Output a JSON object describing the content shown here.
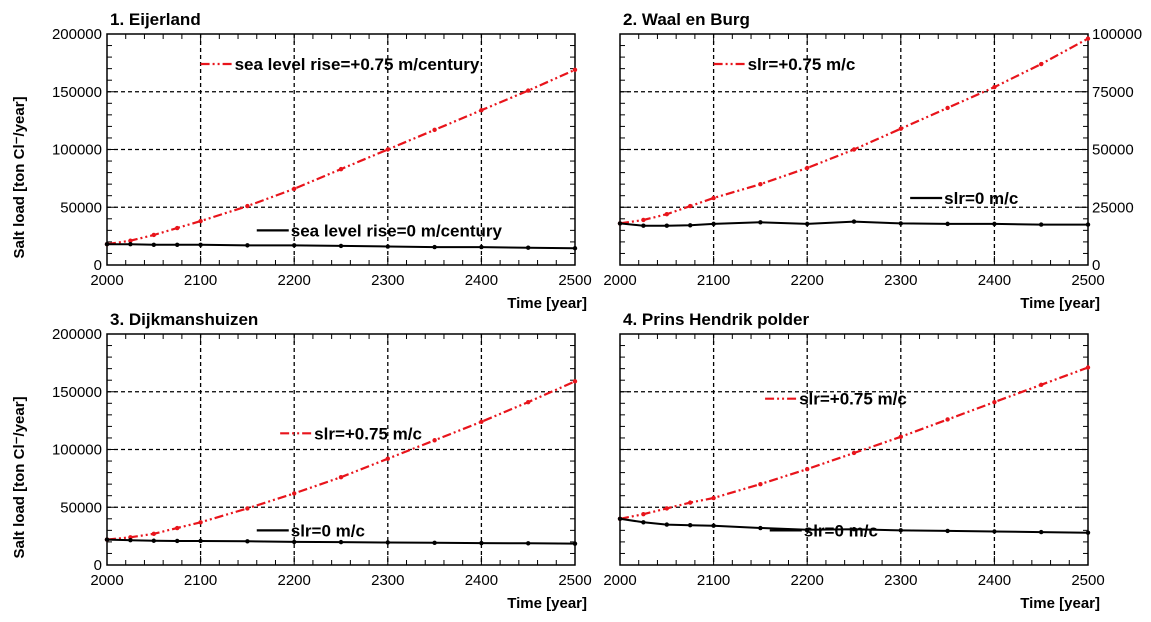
{
  "chart_data": [
    {
      "type": "line",
      "title": "1. Eijerland",
      "xlabel": "Time [year]",
      "ylabel": "Salt load [ton Cl⁻/year]",
      "xlim": [
        2000,
        2500
      ],
      "ylim": [
        0,
        200000
      ],
      "x_ticks": [
        "2000",
        "2100",
        "2200",
        "2300",
        "2400",
        "2500"
      ],
      "y_ticks": [
        "0",
        "50000",
        "100000",
        "150000",
        "200000"
      ],
      "y_axis_side": "left",
      "grid": true,
      "series": [
        {
          "name": "sea level rise=+0.75 m/century",
          "color": "#e8141b",
          "style": "dash-dot-dot",
          "x": [
            2000,
            2025,
            2050,
            2075,
            2100,
            2150,
            2200,
            2250,
            2300,
            2350,
            2400,
            2450,
            2500
          ],
          "y": [
            18000,
            21000,
            26000,
            32000,
            38000,
            51000,
            66000,
            83000,
            100000,
            117000,
            134000,
            151000,
            169000
          ]
        },
        {
          "name": "sea level rise=0 m/century",
          "color": "#000000",
          "style": "solid",
          "x": [
            2000,
            2025,
            2050,
            2075,
            2100,
            2150,
            2200,
            2250,
            2300,
            2350,
            2400,
            2450,
            2500
          ],
          "y": [
            18000,
            18000,
            17500,
            17500,
            17500,
            17000,
            17000,
            16500,
            16000,
            15500,
            15500,
            15000,
            14500
          ]
        }
      ],
      "legend": [
        {
          "label": "sea level rise=+0.75 m/century",
          "series": 0,
          "placement": "top-right"
        },
        {
          "label": "sea level rise=0 m/century",
          "series": 1,
          "placement": "bottom-right"
        }
      ]
    },
    {
      "type": "line",
      "title": "2. Waal en Burg",
      "xlabel": "Time [year]",
      "ylabel": "",
      "xlim": [
        2000,
        2500
      ],
      "ylim": [
        0,
        100000
      ],
      "x_ticks": [
        "2000",
        "2100",
        "2200",
        "2300",
        "2400",
        "2500"
      ],
      "y_ticks": [
        "0",
        "25000",
        "50000",
        "75000",
        "100000"
      ],
      "y_axis_side": "right",
      "grid": true,
      "series": [
        {
          "name": "slr=+0.75 m/c",
          "color": "#e8141b",
          "style": "dash-dot-dot",
          "x": [
            2000,
            2025,
            2050,
            2075,
            2100,
            2150,
            2200,
            2250,
            2300,
            2350,
            2400,
            2450,
            2500
          ],
          "y": [
            18000,
            19500,
            22000,
            25500,
            29000,
            35000,
            42000,
            50000,
            59000,
            68000,
            77000,
            87000,
            98000
          ]
        },
        {
          "name": "slr=0 m/c",
          "color": "#000000",
          "style": "solid",
          "x": [
            2000,
            2025,
            2050,
            2075,
            2100,
            2150,
            2200,
            2250,
            2300,
            2350,
            2400,
            2450,
            2500
          ],
          "y": [
            18000,
            17000,
            17000,
            17200,
            17800,
            18500,
            17800,
            18800,
            18000,
            17800,
            17800,
            17500,
            17500
          ]
        }
      ],
      "legend": [
        {
          "label": "slr=+0.75 m/c",
          "series": 0,
          "placement": "top-right"
        },
        {
          "label": "slr=0 m/c",
          "series": 1,
          "placement": "middle-right"
        }
      ]
    },
    {
      "type": "line",
      "title": "3. Dijkmanshuizen",
      "xlabel": "Time [year]",
      "ylabel": "Salt load [ton Cl⁻/year]",
      "xlim": [
        2000,
        2500
      ],
      "ylim": [
        0,
        200000
      ],
      "x_ticks": [
        "2000",
        "2100",
        "2200",
        "2300",
        "2400",
        "2500"
      ],
      "y_ticks": [
        "0",
        "50000",
        "100000",
        "150000",
        "200000"
      ],
      "y_axis_side": "left",
      "grid": true,
      "series": [
        {
          "name": "slr=+0.75 m/c",
          "color": "#e8141b",
          "style": "dash-dot-dot",
          "x": [
            2000,
            2025,
            2050,
            2075,
            2100,
            2150,
            2200,
            2250,
            2300,
            2350,
            2400,
            2450,
            2500
          ],
          "y": [
            22000,
            24000,
            27000,
            32000,
            37000,
            49000,
            62000,
            76000,
            92000,
            108000,
            124000,
            141000,
            159000
          ]
        },
        {
          "name": "slr=0 m/c",
          "color": "#000000",
          "style": "solid",
          "x": [
            2000,
            2025,
            2050,
            2075,
            2100,
            2150,
            2200,
            2250,
            2300,
            2350,
            2400,
            2450,
            2500
          ],
          "y": [
            22000,
            21500,
            21000,
            20800,
            20800,
            20500,
            20000,
            19800,
            19500,
            19200,
            19000,
            18800,
            18500
          ]
        }
      ],
      "legend": [
        {
          "label": "slr=+0.75 m/c",
          "series": 0,
          "placement": "middle-center"
        },
        {
          "label": "slr=0 m/c",
          "series": 1,
          "placement": "bottom-right"
        }
      ]
    },
    {
      "type": "line",
      "title": "4. Prins Hendrik polder",
      "xlabel": "Time [year]",
      "ylabel": "",
      "xlim": [
        2000,
        2500
      ],
      "ylim": [
        0,
        200000
      ],
      "x_ticks": [
        "2000",
        "2100",
        "2200",
        "2300",
        "2400",
        "2500"
      ],
      "y_ticks": [],
      "y_axis_side": "none",
      "grid": true,
      "series": [
        {
          "name": "slr=+0.75 m/c",
          "color": "#e8141b",
          "style": "dash-dot-dot",
          "x": [
            2000,
            2025,
            2050,
            2075,
            2100,
            2150,
            2200,
            2250,
            2300,
            2350,
            2400,
            2450,
            2500
          ],
          "y": [
            40000,
            44000,
            49000,
            54000,
            58000,
            70000,
            83000,
            97000,
            111000,
            126000,
            141000,
            156000,
            171000
          ]
        },
        {
          "name": "slr=0 m/c",
          "color": "#000000",
          "style": "solid",
          "x": [
            2000,
            2025,
            2050,
            2075,
            2100,
            2150,
            2200,
            2250,
            2300,
            2350,
            2400,
            2450,
            2500
          ],
          "y": [
            40000,
            37000,
            35000,
            34500,
            34000,
            32000,
            30500,
            31000,
            30000,
            29500,
            29000,
            28500,
            28000
          ]
        }
      ],
      "legend": [
        {
          "label": "slr=+0.75 m/c",
          "series": 0,
          "placement": "top-center"
        },
        {
          "label": "slr=0 m/c",
          "series": 1,
          "placement": "bottom-right"
        }
      ]
    }
  ]
}
